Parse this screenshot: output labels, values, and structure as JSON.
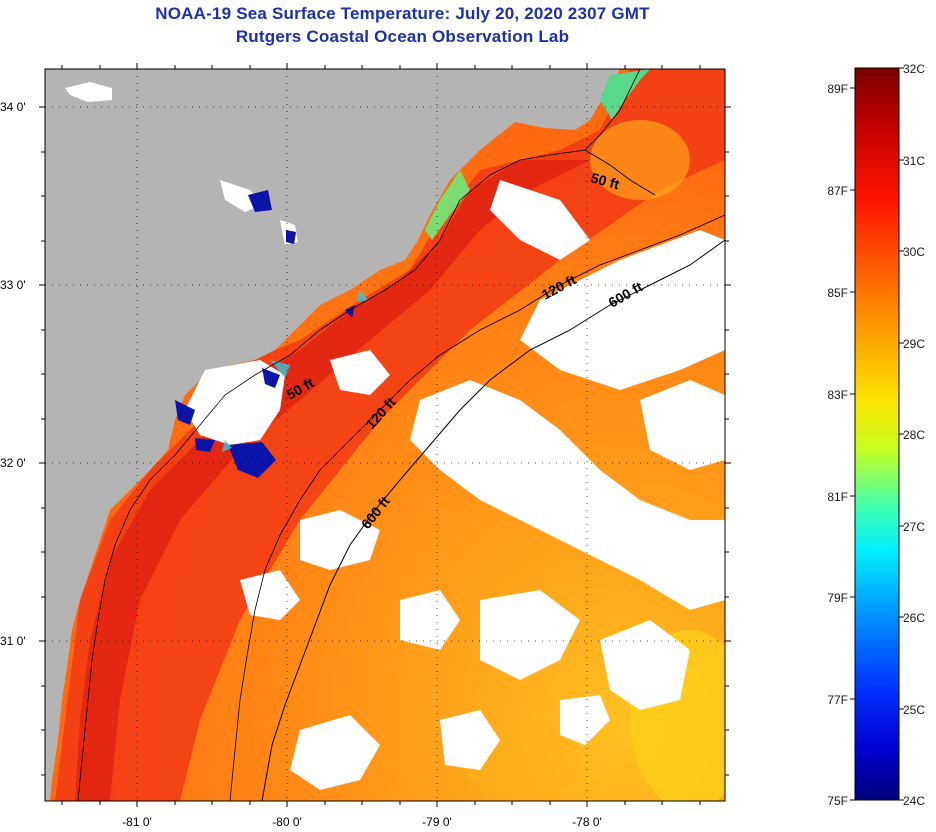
{
  "title": {
    "line1": "NOAA-19 Sea Surface Temperature:  July 20, 2020 2307 GMT",
    "line2": "Rutgers Coastal Ocean Observation Lab"
  },
  "map": {
    "latitude_labels": [
      "34 0'",
      "33 0'",
      "32 0'",
      "31 0'"
    ],
    "longitude_labels": [
      "-81 0'",
      "-80 0'",
      "-79 0'",
      "-78 0'"
    ],
    "contour_labels": [
      "50 ft",
      "120 ft",
      "600 ft",
      "50 ft",
      "120 ft",
      "600 ft"
    ],
    "colors": {
      "land": "#b4b4b4",
      "cloud": "#ffffff",
      "warm_ocean": "#ff6a10",
      "coastal_water": "#e8201a",
      "cool_water": "#0a14a8"
    }
  },
  "colorbar": {
    "celsius": [
      "32C",
      "31C",
      "30C",
      "29C",
      "28C",
      "27C",
      "26C",
      "25C",
      "24C"
    ],
    "fahrenheit": [
      "89F",
      "87F",
      "85F",
      "83F",
      "81F",
      "79F",
      "77F",
      "75F"
    ],
    "range_c": [
      24,
      32
    ]
  }
}
